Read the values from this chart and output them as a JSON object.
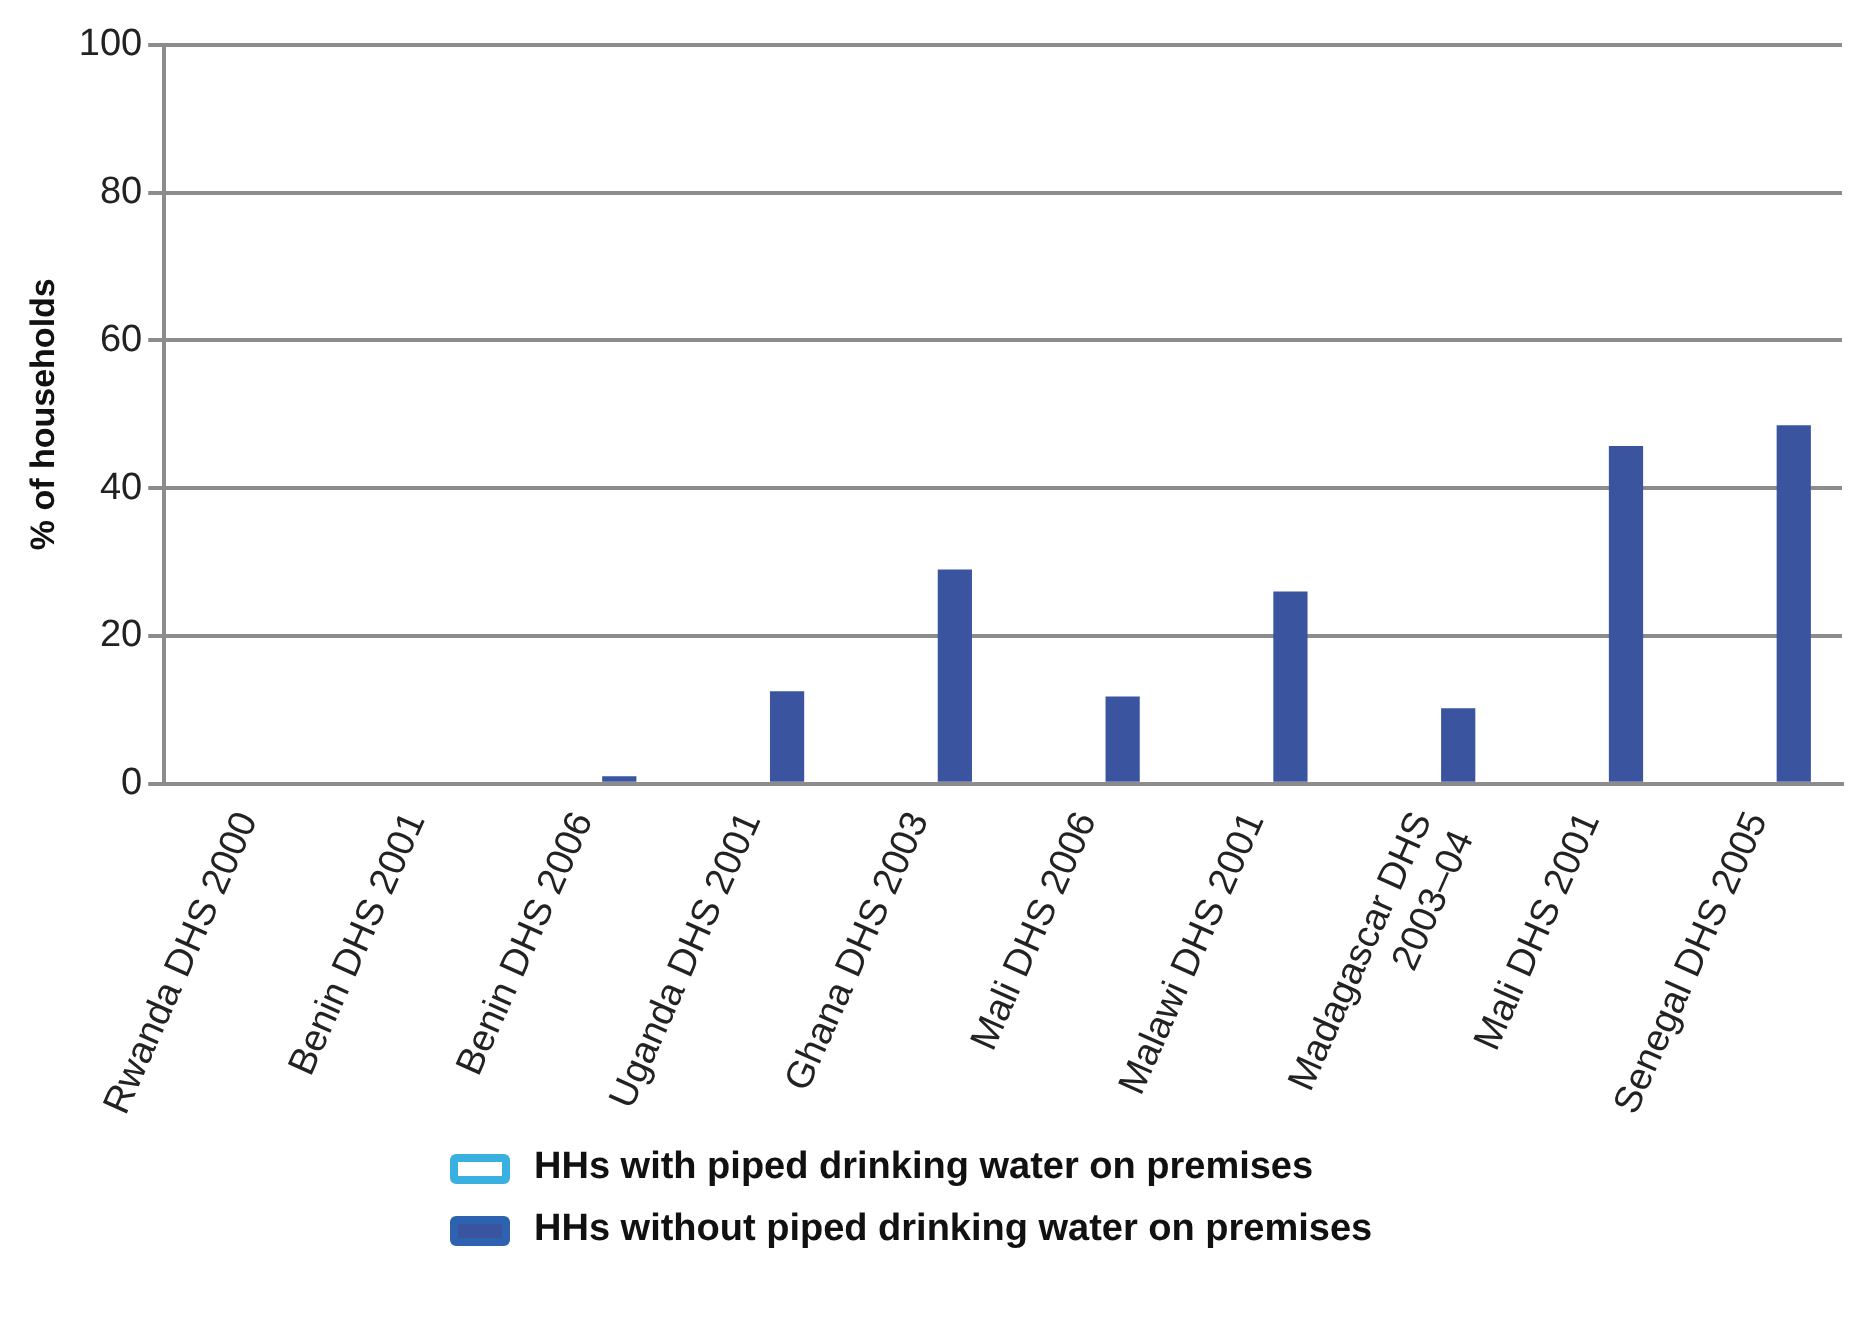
{
  "chart_data": {
    "type": "bar",
    "ylabel": "% of households",
    "categories": [
      "Rwanda DHS 2000",
      "Benin DHS 2001",
      "Benin DHS 2006",
      "Uganda DHS 2001",
      "Ghana DHS 2003",
      "Mali DHS 2006",
      "Malawi DHS 2001",
      "Madagascar DHS 2003–04",
      "Mali DHS 2001",
      "Senegal DHS 2005"
    ],
    "series": [
      {
        "name": "HHs with piped drinking water on premises",
        "color": "#ffffff",
        "values": [
          null,
          null,
          null,
          null,
          null,
          null,
          null,
          null,
          null,
          null
        ]
      },
      {
        "name": "HHs without piped drinking water on premises",
        "color": "#3b54a0",
        "values": [
          0,
          0,
          1,
          12.5,
          29,
          11.8,
          26,
          10.2,
          45.7,
          48.5
        ]
      }
    ],
    "ylim": [
      0,
      100
    ],
    "yticks": [
      0,
      20,
      40,
      60,
      80,
      100
    ],
    "grid": "y",
    "legend": "bottom"
  }
}
